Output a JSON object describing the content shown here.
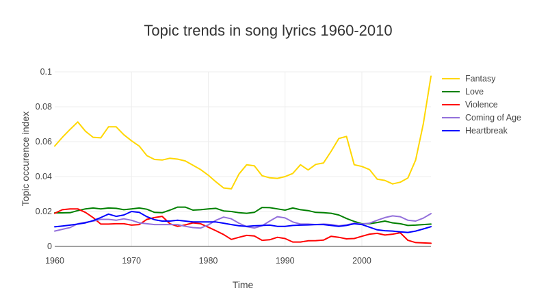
{
  "chart_data": {
    "type": "line",
    "title": "Topic trends in song lyrics 1960-2010",
    "xlabel": "Time",
    "ylabel": "Topic occurence index",
    "xlim": [
      1960,
      2009
    ],
    "ylim": [
      0,
      0.1
    ],
    "x_ticks": [
      1960,
      1970,
      1980,
      1990,
      2000
    ],
    "y_ticks": [
      0,
      0.02,
      0.04,
      0.06,
      0.08,
      0.1
    ],
    "x_tick_labels": [
      "1960",
      "1970",
      "1980",
      "1990",
      "2000"
    ],
    "y_tick_labels": [
      "0",
      "0.02",
      "0.04",
      "0.06",
      "0.08",
      "0.1"
    ],
    "grid": true,
    "legend_position": "top-right",
    "x": [
      1960,
      1961,
      1962,
      1963,
      1964,
      1965,
      1966,
      1967,
      1968,
      1969,
      1970,
      1971,
      1972,
      1973,
      1974,
      1975,
      1976,
      1977,
      1978,
      1979,
      1980,
      1981,
      1982,
      1983,
      1984,
      1985,
      1986,
      1987,
      1988,
      1989,
      1990,
      1991,
      1992,
      1993,
      1994,
      1995,
      1996,
      1997,
      1998,
      1999,
      2000,
      2001,
      2002,
      2003,
      2004,
      2005,
      2006,
      2007,
      2008,
      2009
    ],
    "series": [
      {
        "name": "Fantasy",
        "color": "#ffd700",
        "values": [
          0.0575,
          0.0625,
          0.067,
          0.0713,
          0.066,
          0.0625,
          0.0622,
          0.0685,
          0.0685,
          0.064,
          0.0605,
          0.0575,
          0.052,
          0.0498,
          0.0495,
          0.0505,
          0.05,
          0.049,
          0.0465,
          0.044,
          0.0408,
          0.037,
          0.0335,
          0.033,
          0.0415,
          0.0468,
          0.0462,
          0.0405,
          0.0393,
          0.039,
          0.04,
          0.0418,
          0.0468,
          0.0438,
          0.047,
          0.0478,
          0.0545,
          0.0618,
          0.063,
          0.0468,
          0.0458,
          0.044,
          0.0385,
          0.0378,
          0.0358,
          0.0368,
          0.0392,
          0.0495,
          0.0702,
          0.0975
        ]
      },
      {
        "name": "Love",
        "color": "#008000",
        "values": [
          0.0192,
          0.0192,
          0.0193,
          0.0205,
          0.0215,
          0.022,
          0.0215,
          0.022,
          0.0218,
          0.021,
          0.0215,
          0.022,
          0.0213,
          0.0195,
          0.0193,
          0.0208,
          0.0225,
          0.0225,
          0.0208,
          0.021,
          0.0215,
          0.0218,
          0.0203,
          0.02,
          0.0193,
          0.019,
          0.0195,
          0.0223,
          0.0222,
          0.0215,
          0.0208,
          0.022,
          0.021,
          0.0205,
          0.0195,
          0.0193,
          0.019,
          0.018,
          0.016,
          0.0143,
          0.013,
          0.013,
          0.0137,
          0.0145,
          0.0135,
          0.013,
          0.012,
          0.0122,
          0.0125,
          0.0128
        ]
      },
      {
        "name": "Violence",
        "color": "#ff0000",
        "values": [
          0.019,
          0.021,
          0.0215,
          0.0215,
          0.0195,
          0.0165,
          0.0128,
          0.0128,
          0.013,
          0.013,
          0.0122,
          0.0125,
          0.0155,
          0.0165,
          0.0172,
          0.013,
          0.0115,
          0.0123,
          0.0135,
          0.013,
          0.011,
          0.009,
          0.0068,
          0.004,
          0.0052,
          0.0063,
          0.006,
          0.0035,
          0.0038,
          0.0052,
          0.0045,
          0.0025,
          0.0025,
          0.0032,
          0.0033,
          0.0036,
          0.0058,
          0.0052,
          0.0043,
          0.0045,
          0.0058,
          0.007,
          0.0075,
          0.0065,
          0.007,
          0.0078,
          0.0035,
          0.0022,
          0.002,
          0.0018
        ]
      },
      {
        "name": "Coming of Age",
        "color": "#9370db",
        "values": [
          0.0088,
          0.0098,
          0.0108,
          0.013,
          0.0138,
          0.0145,
          0.0155,
          0.0155,
          0.015,
          0.0158,
          0.015,
          0.0135,
          0.013,
          0.0125,
          0.0125,
          0.0125,
          0.0125,
          0.0115,
          0.0108,
          0.0105,
          0.0123,
          0.015,
          0.0168,
          0.0158,
          0.0133,
          0.0113,
          0.0105,
          0.0118,
          0.0145,
          0.017,
          0.0163,
          0.014,
          0.0128,
          0.0128,
          0.0125,
          0.0128,
          0.0125,
          0.0118,
          0.0123,
          0.0133,
          0.0128,
          0.0133,
          0.015,
          0.0165,
          0.0175,
          0.017,
          0.015,
          0.0145,
          0.0162,
          0.0188
        ]
      },
      {
        "name": "Heartbreak",
        "color": "#0000ff",
        "values": [
          0.0112,
          0.0117,
          0.0122,
          0.0128,
          0.0135,
          0.0148,
          0.0165,
          0.0185,
          0.0172,
          0.018,
          0.02,
          0.0195,
          0.017,
          0.0153,
          0.0145,
          0.0145,
          0.015,
          0.0145,
          0.014,
          0.014,
          0.014,
          0.014,
          0.0133,
          0.0125,
          0.0118,
          0.0115,
          0.0118,
          0.012,
          0.0122,
          0.0115,
          0.0115,
          0.012,
          0.0122,
          0.0123,
          0.0125,
          0.0125,
          0.012,
          0.0115,
          0.012,
          0.013,
          0.0125,
          0.011,
          0.0095,
          0.009,
          0.0088,
          0.0083,
          0.008,
          0.0088,
          0.01,
          0.0113
        ]
      }
    ]
  }
}
